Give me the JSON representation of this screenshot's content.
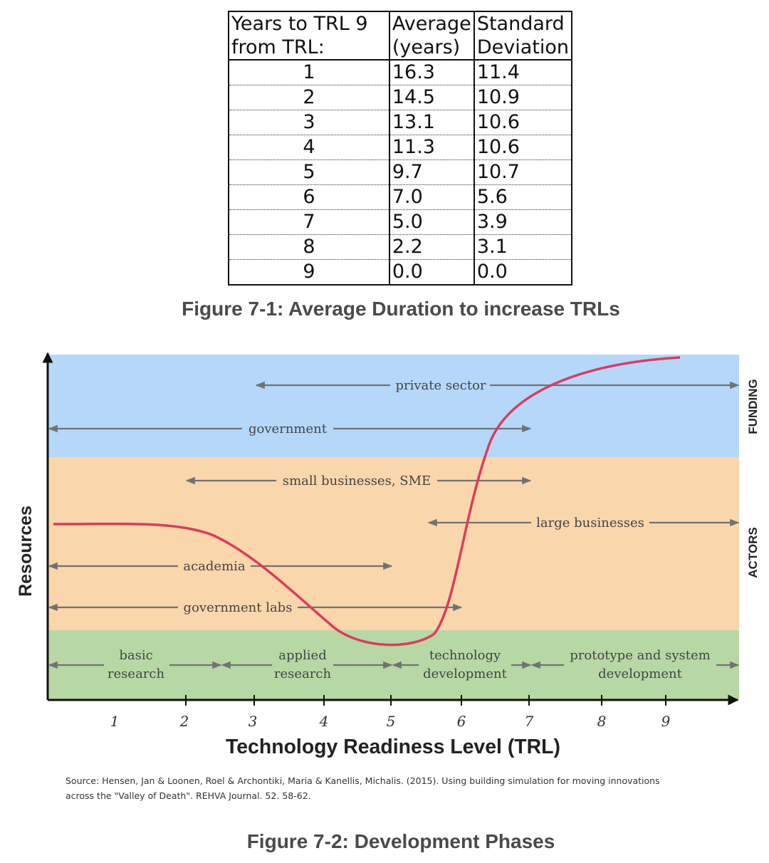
{
  "table": {
    "headers": [
      {
        "line1": "Years to TRL 9",
        "line2": "from TRL:"
      },
      {
        "line1": "Average",
        "line2": "(years)"
      },
      {
        "line1": "Standard",
        "line2": "Deviation"
      }
    ],
    "rows": [
      [
        "1",
        "16.3",
        "11.4"
      ],
      [
        "2",
        "14.5",
        "10.9"
      ],
      [
        "3",
        "13.1",
        "10.6"
      ],
      [
        "4",
        "11.3",
        "10.6"
      ],
      [
        "5",
        "9.7",
        "10.7"
      ],
      [
        "6",
        "7.0",
        "5.6"
      ],
      [
        "7",
        "5.0",
        "3.9"
      ],
      [
        "8",
        "2.2",
        "3.1"
      ],
      [
        "9",
        "0.0",
        "0.0"
      ]
    ]
  },
  "figure1_caption": "Figure 7-1: Average Duration to increase TRLs",
  "diagram": {
    "y_axis_label": "Resources",
    "x_axis_label": "Technology Readiness Level (TRL)",
    "x_ticks": [
      "1",
      "2",
      "3",
      "4",
      "5",
      "6",
      "7",
      "8",
      "9"
    ],
    "band_labels": {
      "funding": "FUNDING",
      "actors": "ACTORS"
    },
    "funding_actors": {
      "private_sector": "private sector",
      "government": "government"
    },
    "actors": {
      "small_businesses": "small businesses, SME",
      "large_businesses": "large businesses",
      "academia": "academia",
      "government_labs": "government labs"
    },
    "phases": [
      {
        "line1": "basic",
        "line2": "research"
      },
      {
        "line1": "applied",
        "line2": "research"
      },
      {
        "line1": "technology",
        "line2": "development"
      },
      {
        "line1": "prototype and system",
        "line2": "development"
      }
    ],
    "colors": {
      "funding": "#b4d7fa",
      "actors": "#fad6ab",
      "phases": "#b7d8a4",
      "curve": "#dc3c5e",
      "arrow": "#727272"
    }
  },
  "source_line1": "Source: Hensen, Jan & Loonen, Roel & Archontiki, Maria & Kanellis, Michalis. (2015). Using building simulation for moving innovations",
  "source_line2": "across the \"Valley of Death\". REHVA Journal. 52. 58-62.",
  "figure2_caption": "Figure 7-2: Development Phases"
}
